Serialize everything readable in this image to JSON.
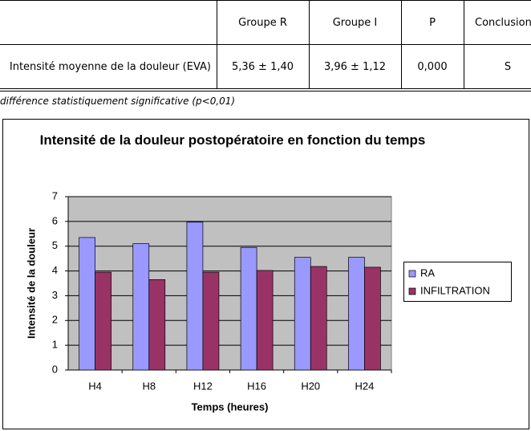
{
  "table": {
    "header": [
      "Groupe R",
      "Groupe I",
      "P",
      "Conclusion"
    ],
    "rows": [
      [
        "Intensité moyenne de  la douleur (EVA)",
        "5,36 ± 1,40",
        "3,96 ± 1,12",
        "0,000",
        "S"
      ]
    ],
    "footnote": "différence statistiquement significative (p<0,01)"
  },
  "chart_data": {
    "type": "bar",
    "title": "Intensité de la douleur postopératoire en fonction du temps",
    "xlabel": "Temps (heures)",
    "ylabel": "Intensité de la douleur",
    "categories": [
      "H4",
      "H8",
      "H12",
      "H16",
      "H20",
      "H24"
    ],
    "series": [
      {
        "name": "RA",
        "color": "#9999ff",
        "values": [
          5.35,
          5.1,
          5.97,
          4.95,
          4.55,
          4.55
        ]
      },
      {
        "name": "INFILTRATION",
        "color": "#993366",
        "values": [
          3.95,
          3.65,
          3.95,
          4.02,
          4.18,
          4.15
        ]
      }
    ],
    "ylim": [
      0,
      7
    ],
    "yticks": [
      0,
      1,
      2,
      3,
      4,
      5,
      6,
      7
    ],
    "grid": true,
    "legend": "right"
  }
}
